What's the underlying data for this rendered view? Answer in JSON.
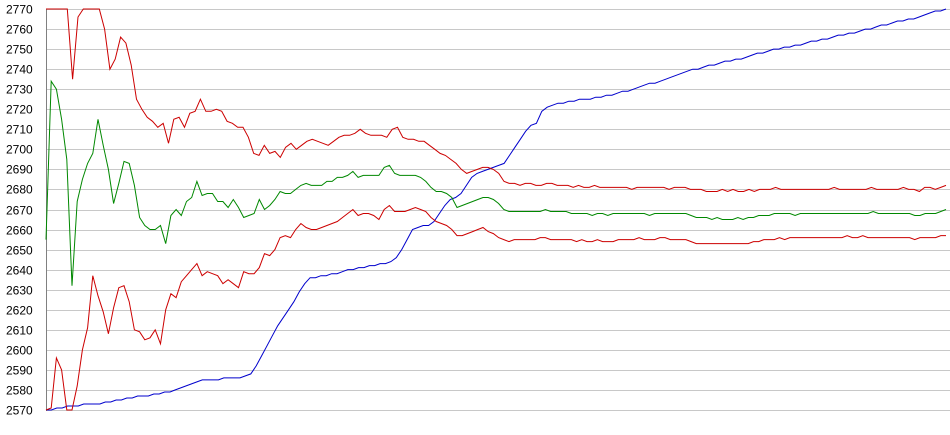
{
  "chart_data": {
    "type": "line",
    "title": "",
    "xlabel": "",
    "ylabel": "",
    "ylim": [
      2570,
      2770
    ],
    "yticks": [
      2570,
      2580,
      2590,
      2600,
      2610,
      2620,
      2630,
      2640,
      2650,
      2660,
      2670,
      2680,
      2690,
      2700,
      2710,
      2720,
      2730,
      2740,
      2750,
      2760,
      2770
    ],
    "grid": true,
    "legend": "none",
    "series": [
      {
        "color": "#0000cc",
        "values": [
          2570,
          2570,
          2571,
          2571,
          2572,
          2572,
          2572,
          2573,
          2573,
          2573,
          2573,
          2574,
          2574,
          2575,
          2575,
          2576,
          2576,
          2577,
          2577,
          2577,
          2578,
          2578,
          2579,
          2579,
          2580,
          2581,
          2582,
          2583,
          2584,
          2585,
          2585,
          2585,
          2585,
          2586,
          2586,
          2586,
          2586,
          2587,
          2588,
          2592,
          2597,
          2602,
          2607,
          2612,
          2616,
          2620,
          2624,
          2629,
          2633,
          2636,
          2636,
          2637,
          2637,
          2638,
          2638,
          2639,
          2640,
          2640,
          2641,
          2641,
          2642,
          2642,
          2643,
          2643,
          2644,
          2646,
          2650,
          2655,
          2660,
          2661,
          2662,
          2662,
          2664,
          2668,
          2672,
          2675,
          2676,
          2678,
          2682,
          2686,
          2688,
          2689,
          2690,
          2691,
          2692,
          2693,
          2697,
          2701,
          2705,
          2709,
          2712,
          2713,
          2719,
          2721,
          2722,
          2723,
          2723,
          2724,
          2724,
          2725,
          2725,
          2725,
          2726,
          2726,
          2727,
          2727,
          2728,
          2729,
          2729,
          2730,
          2731,
          2732,
          2733,
          2733,
          2734,
          2735,
          2736,
          2737,
          2738,
          2739,
          2740,
          2740,
          2741,
          2742,
          2742,
          2743,
          2744,
          2744,
          2745,
          2745,
          2746,
          2747,
          2748,
          2748,
          2749,
          2750,
          2750,
          2751,
          2751,
          2752,
          2752,
          2753,
          2754,
          2754,
          2755,
          2755,
          2756,
          2757,
          2757,
          2758,
          2758,
          2759,
          2760,
          2760,
          2761,
          2762,
          2762,
          2763,
          2764,
          2764,
          2765,
          2765,
          2766,
          2767,
          2768,
          2769,
          2769,
          2770
        ]
      },
      {
        "color": "#cc0000",
        "values": [
          2770,
          2770,
          2770,
          2770,
          2770,
          2735,
          2766,
          2770,
          2770,
          2770,
          2770,
          2760,
          2740,
          2745,
          2756,
          2753,
          2742,
          2725,
          2720,
          2716,
          2714,
          2711,
          2713,
          2703,
          2715,
          2716,
          2711,
          2718,
          2719,
          2725,
          2719,
          2719,
          2720,
          2719,
          2714,
          2713,
          2711,
          2711,
          2706,
          2698,
          2697,
          2702,
          2698,
          2699,
          2696,
          2701,
          2703,
          2700,
          2702,
          2704,
          2705,
          2704,
          2703,
          2702,
          2704,
          2706,
          2707,
          2707,
          2708,
          2710,
          2708,
          2707,
          2707,
          2707,
          2706,
          2710,
          2711,
          2706,
          2705,
          2705,
          2704,
          2704,
          2702,
          2700,
          2698,
          2697,
          2695,
          2693,
          2690,
          2688,
          2689,
          2690,
          2691,
          2691,
          2690,
          2688,
          2684,
          2683,
          2683,
          2682,
          2683,
          2683,
          2682,
          2682,
          2683,
          2683,
          2682,
          2682,
          2682,
          2681,
          2682,
          2681,
          2681,
          2682,
          2681,
          2681,
          2681,
          2681,
          2681,
          2681,
          2680,
          2681,
          2681,
          2681,
          2681,
          2681,
          2681,
          2680,
          2681,
          2681,
          2681,
          2680,
          2680,
          2680,
          2679,
          2679,
          2679,
          2680,
          2679,
          2680,
          2679,
          2679,
          2680,
          2679,
          2680,
          2680,
          2680,
          2681,
          2680,
          2680,
          2680,
          2680,
          2680,
          2680,
          2680,
          2680,
          2680,
          2680,
          2681,
          2680,
          2680,
          2680,
          2680,
          2680,
          2680,
          2681,
          2680,
          2680,
          2680,
          2680,
          2680,
          2681,
          2680,
          2680,
          2679,
          2681,
          2681,
          2680,
          2681,
          2682
        ]
      },
      {
        "color": "#008800",
        "values": [
          2655,
          2734,
          2730,
          2715,
          2695,
          2632,
          2674,
          2685,
          2693,
          2698,
          2715,
          2702,
          2690,
          2673,
          2683,
          2694,
          2693,
          2682,
          2666,
          2662,
          2660,
          2660,
          2662,
          2653,
          2667,
          2670,
          2667,
          2674,
          2676,
          2684,
          2677,
          2678,
          2678,
          2674,
          2674,
          2671,
          2675,
          2671,
          2666,
          2667,
          2668,
          2675,
          2670,
          2672,
          2675,
          2679,
          2678,
          2678,
          2680,
          2682,
          2683,
          2682,
          2682,
          2682,
          2684,
          2684,
          2686,
          2686,
          2687,
          2689,
          2686,
          2687,
          2687,
          2687,
          2687,
          2691,
          2692,
          2688,
          2687,
          2687,
          2687,
          2687,
          2686,
          2684,
          2681,
          2679,
          2679,
          2678,
          2676,
          2671,
          2672,
          2673,
          2674,
          2675,
          2676,
          2676,
          2675,
          2673,
          2670,
          2669,
          2669,
          2669,
          2669,
          2669,
          2669,
          2669,
          2670,
          2669,
          2669,
          2669,
          2669,
          2668,
          2668,
          2668,
          2668,
          2667,
          2668,
          2668,
          2667,
          2668,
          2668,
          2668,
          2668,
          2668,
          2668,
          2668,
          2667,
          2668,
          2668,
          2668,
          2668,
          2668,
          2668,
          2668,
          2667,
          2666,
          2666,
          2666,
          2665,
          2666,
          2665,
          2665,
          2665,
          2666,
          2665,
          2666,
          2666,
          2667,
          2667,
          2667,
          2668,
          2668,
          2668,
          2668,
          2667,
          2668,
          2668,
          2668,
          2668,
          2668,
          2668,
          2668,
          2668,
          2668,
          2668,
          2668,
          2668,
          2668,
          2668,
          2669,
          2668,
          2668,
          2668,
          2668,
          2668,
          2668,
          2668,
          2667,
          2667,
          2668,
          2668,
          2668,
          2669,
          2670
        ]
      },
      {
        "color": "#cc0000",
        "values": [
          2570,
          2571,
          2596,
          2590,
          2570,
          2570,
          2582,
          2600,
          2611,
          2637,
          2627,
          2619,
          2608,
          2621,
          2631,
          2632,
          2624,
          2610,
          2609,
          2605,
          2606,
          2610,
          2603,
          2620,
          2628,
          2626,
          2634,
          2637,
          2640,
          2643,
          2637,
          2639,
          2638,
          2637,
          2633,
          2635,
          2633,
          2631,
          2639,
          2638,
          2638,
          2641,
          2648,
          2647,
          2650,
          2656,
          2657,
          2656,
          2660,
          2663,
          2661,
          2660,
          2660,
          2661,
          2662,
          2663,
          2664,
          2666,
          2668,
          2670,
          2667,
          2668,
          2668,
          2667,
          2665,
          2670,
          2672,
          2669,
          2669,
          2669,
          2670,
          2671,
          2670,
          2669,
          2666,
          2664,
          2663,
          2662,
          2660,
          2657,
          2657,
          2658,
          2659,
          2660,
          2661,
          2659,
          2658,
          2656,
          2655,
          2654,
          2655,
          2655,
          2655,
          2655,
          2655,
          2656,
          2656,
          2655,
          2655,
          2655,
          2655,
          2655,
          2654,
          2655,
          2654,
          2654,
          2655,
          2654,
          2654,
          2654,
          2655,
          2655,
          2655,
          2655,
          2656,
          2655,
          2655,
          2655,
          2656,
          2656,
          2655,
          2655,
          2655,
          2655,
          2654,
          2653,
          2653,
          2653,
          2653,
          2653,
          2653,
          2653,
          2653,
          2653,
          2653,
          2653,
          2654,
          2654,
          2655,
          2655,
          2655,
          2656,
          2655,
          2656,
          2656,
          2656,
          2656,
          2656,
          2656,
          2656,
          2656,
          2656,
          2656,
          2656,
          2657,
          2656,
          2656,
          2657,
          2656,
          2656,
          2656,
          2656,
          2656,
          2656,
          2656,
          2656,
          2656,
          2655,
          2656,
          2656,
          2656,
          2656,
          2657,
          2657
        ]
      }
    ]
  }
}
